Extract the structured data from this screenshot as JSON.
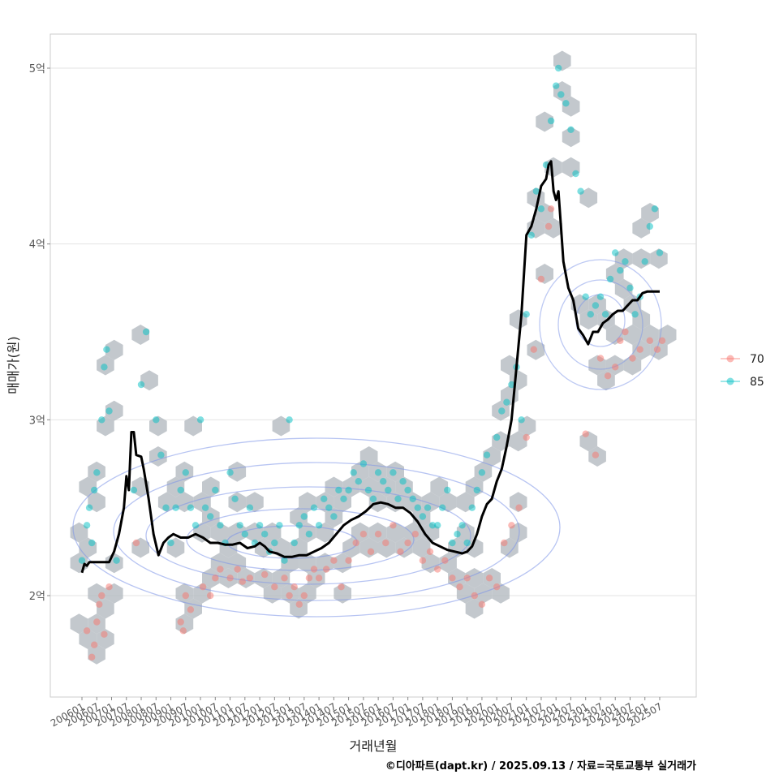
{
  "chart_data": {
    "type": "scatter",
    "xlabel": "거래년월",
    "ylabel": "매매가(원)",
    "caption": "©디아파트(dapt.kr) / 2025.09.13 / 자료=국토교통부 실거래가",
    "ylim": [
      1.45,
      5.2
    ],
    "y_ticks": [
      {
        "value": 2,
        "label": "2억"
      },
      {
        "value": 3,
        "label": "3억"
      },
      {
        "value": 4,
        "label": "4억"
      },
      {
        "value": 5,
        "label": "5억"
      }
    ],
    "x_ticks": [
      "200601",
      "200607",
      "200701",
      "200707",
      "200801",
      "200807",
      "200901",
      "200907",
      "201001",
      "201007",
      "201101",
      "201107",
      "201201",
      "201207",
      "201301",
      "201307",
      "201401",
      "201407",
      "201501",
      "201507",
      "201601",
      "201607",
      "201701",
      "201707",
      "201801",
      "201807",
      "201901",
      "201907",
      "202001",
      "202007",
      "202101",
      "202107",
      "202201",
      "202207",
      "202301",
      "202307",
      "202401",
      "202407",
      "202501",
      "202507"
    ],
    "grid": true,
    "legend_position": "right",
    "colors": {
      "70": "#F8766D",
      "85": "#00BFC4",
      "trend": "#000000",
      "hex": "#B4BAC0",
      "contour": "#7B93E8"
    },
    "series": [
      {
        "name": "70",
        "points": [
          [
            "200603",
            1.8
          ],
          [
            "200605",
            1.65
          ],
          [
            "200606",
            1.72
          ],
          [
            "200607",
            1.85
          ],
          [
            "200608",
            1.95
          ],
          [
            "200609",
            2.0
          ],
          [
            "200610",
            1.78
          ],
          [
            "200612",
            2.05
          ],
          [
            "200711",
            2.3
          ],
          [
            "200905",
            1.85
          ],
          [
            "200906",
            1.8
          ],
          [
            "200907",
            2.0
          ],
          [
            "200909",
            1.92
          ],
          [
            "201002",
            2.05
          ],
          [
            "201005",
            2.0
          ],
          [
            "201007",
            2.1
          ],
          [
            "201009",
            2.15
          ],
          [
            "201101",
            2.1
          ],
          [
            "201104",
            2.15
          ],
          [
            "201106",
            2.08
          ],
          [
            "201109",
            2.1
          ],
          [
            "201203",
            2.12
          ],
          [
            "201207",
            2.05
          ],
          [
            "201211",
            2.1
          ],
          [
            "201301",
            2.0
          ],
          [
            "201303",
            2.05
          ],
          [
            "201305",
            1.95
          ],
          [
            "201307",
            2.0
          ],
          [
            "201309",
            2.1
          ],
          [
            "201311",
            2.15
          ],
          [
            "201401",
            2.1
          ],
          [
            "201404",
            2.15
          ],
          [
            "201407",
            2.2
          ],
          [
            "201410",
            2.05
          ],
          [
            "201501",
            2.2
          ],
          [
            "201504",
            2.3
          ],
          [
            "201507",
            2.35
          ],
          [
            "201510",
            2.25
          ],
          [
            "201601",
            2.35
          ],
          [
            "201604",
            2.3
          ],
          [
            "201607",
            2.4
          ],
          [
            "201610",
            2.25
          ],
          [
            "201701",
            2.3
          ],
          [
            "201704",
            2.35
          ],
          [
            "201707",
            2.2
          ],
          [
            "201710",
            2.25
          ],
          [
            "201801",
            2.15
          ],
          [
            "201804",
            2.2
          ],
          [
            "201807",
            2.1
          ],
          [
            "201810",
            2.05
          ],
          [
            "201901",
            2.1
          ],
          [
            "201904",
            2.0
          ],
          [
            "201907",
            1.95
          ],
          [
            "201910",
            2.1
          ],
          [
            "202001",
            2.05
          ],
          [
            "202004",
            2.3
          ],
          [
            "202007",
            2.4
          ],
          [
            "202010",
            2.5
          ],
          [
            "202101",
            2.9
          ],
          [
            "202104",
            3.4
          ],
          [
            "202107",
            3.8
          ],
          [
            "202110",
            4.1
          ],
          [
            "202111",
            4.2
          ],
          [
            "202301",
            2.92
          ],
          [
            "202305",
            2.8
          ],
          [
            "202307",
            3.35
          ],
          [
            "202310",
            3.25
          ],
          [
            "202401",
            3.3
          ],
          [
            "202403",
            3.45
          ],
          [
            "202405",
            3.5
          ],
          [
            "202408",
            3.35
          ],
          [
            "202411",
            3.4
          ],
          [
            "202503",
            3.45
          ],
          [
            "202506",
            3.4
          ],
          [
            "202508",
            3.45
          ]
        ]
      },
      {
        "name": "85",
        "points": [
          [
            "200601",
            2.2
          ],
          [
            "200603",
            2.4
          ],
          [
            "200604",
            2.5
          ],
          [
            "200605",
            2.3
          ],
          [
            "200606",
            2.6
          ],
          [
            "200607",
            2.7
          ],
          [
            "200609",
            3.0
          ],
          [
            "200610",
            3.3
          ],
          [
            "200611",
            3.4
          ],
          [
            "200612",
            3.05
          ],
          [
            "200703",
            2.2
          ],
          [
            "200710",
            2.6
          ],
          [
            "200801",
            3.2
          ],
          [
            "200803",
            3.5
          ],
          [
            "200807",
            3.0
          ],
          [
            "200809",
            2.8
          ],
          [
            "200811",
            2.5
          ],
          [
            "200901",
            2.3
          ],
          [
            "200903",
            2.5
          ],
          [
            "200905",
            2.6
          ],
          [
            "200907",
            2.7
          ],
          [
            "200909",
            2.5
          ],
          [
            "200911",
            2.4
          ],
          [
            "201001",
            3.0
          ],
          [
            "201003",
            2.5
          ],
          [
            "201005",
            2.45
          ],
          [
            "201007",
            2.6
          ],
          [
            "201009",
            2.4
          ],
          [
            "201011",
            2.3
          ],
          [
            "201101",
            2.7
          ],
          [
            "201103",
            2.55
          ],
          [
            "201105",
            2.4
          ],
          [
            "201107",
            2.35
          ],
          [
            "201109",
            2.5
          ],
          [
            "201111",
            2.3
          ],
          [
            "201201",
            2.4
          ],
          [
            "201203",
            2.35
          ],
          [
            "201205",
            2.25
          ],
          [
            "201207",
            2.3
          ],
          [
            "201209",
            2.4
          ],
          [
            "201211",
            2.2
          ],
          [
            "201301",
            3.0
          ],
          [
            "201303",
            2.3
          ],
          [
            "201305",
            2.4
          ],
          [
            "201307",
            2.45
          ],
          [
            "201309",
            2.35
          ],
          [
            "201311",
            2.5
          ],
          [
            "201401",
            2.4
          ],
          [
            "201403",
            2.55
          ],
          [
            "201405",
            2.5
          ],
          [
            "201407",
            2.45
          ],
          [
            "201409",
            2.6
          ],
          [
            "201411",
            2.55
          ],
          [
            "201501",
            2.6
          ],
          [
            "201503",
            2.7
          ],
          [
            "201505",
            2.65
          ],
          [
            "201507",
            2.75
          ],
          [
            "201509",
            2.6
          ],
          [
            "201511",
            2.55
          ],
          [
            "201601",
            2.7
          ],
          [
            "201603",
            2.65
          ],
          [
            "201605",
            2.6
          ],
          [
            "201607",
            2.7
          ],
          [
            "201609",
            2.55
          ],
          [
            "201611",
            2.65
          ],
          [
            "201701",
            2.6
          ],
          [
            "201703",
            2.55
          ],
          [
            "201705",
            2.5
          ],
          [
            "201707",
            2.45
          ],
          [
            "201709",
            2.5
          ],
          [
            "201711",
            2.4
          ],
          [
            "201801",
            2.4
          ],
          [
            "201803",
            2.5
          ],
          [
            "201805",
            2.6
          ],
          [
            "201807",
            2.3
          ],
          [
            "201809",
            2.35
          ],
          [
            "201811",
            2.4
          ],
          [
            "201901",
            2.3
          ],
          [
            "201903",
            2.5
          ],
          [
            "201905",
            2.6
          ],
          [
            "201907",
            2.7
          ],
          [
            "201909",
            2.8
          ],
          [
            "202001",
            2.9
          ],
          [
            "202003",
            3.05
          ],
          [
            "202005",
            3.1
          ],
          [
            "202007",
            3.2
          ],
          [
            "202009",
            3.3
          ],
          [
            "202011",
            3.0
          ],
          [
            "202101",
            3.6
          ],
          [
            "202103",
            4.05
          ],
          [
            "202105",
            4.3
          ],
          [
            "202107",
            4.2
          ],
          [
            "202109",
            4.45
          ],
          [
            "202111",
            4.7
          ],
          [
            "202201",
            4.9
          ],
          [
            "202202",
            5.0
          ],
          [
            "202203",
            4.85
          ],
          [
            "202205",
            4.8
          ],
          [
            "202207",
            4.65
          ],
          [
            "202209",
            4.4
          ],
          [
            "202211",
            4.3
          ],
          [
            "202301",
            3.7
          ],
          [
            "202303",
            3.6
          ],
          [
            "202305",
            3.65
          ],
          [
            "202307",
            3.7
          ],
          [
            "202309",
            3.6
          ],
          [
            "202311",
            3.8
          ],
          [
            "202401",
            3.95
          ],
          [
            "202403",
            3.85
          ],
          [
            "202405",
            3.9
          ],
          [
            "202407",
            3.75
          ],
          [
            "202409",
            3.6
          ],
          [
            "202411",
            3.7
          ],
          [
            "202501",
            3.9
          ],
          [
            "202503",
            4.1
          ],
          [
            "202505",
            4.2
          ],
          [
            "202507",
            3.95
          ]
        ]
      }
    ],
    "trend": [
      [
        "200601",
        2.13
      ],
      [
        "200602",
        2.18
      ],
      [
        "200603",
        2.17
      ],
      [
        "200604",
        2.19
      ],
      [
        "200607",
        2.19
      ],
      [
        "200610",
        2.19
      ],
      [
        "200612",
        2.19
      ],
      [
        "200702",
        2.25
      ],
      [
        "200704",
        2.35
      ],
      [
        "200706",
        2.5
      ],
      [
        "200707",
        2.68
      ],
      [
        "200708",
        2.6
      ],
      [
        "200709",
        2.93
      ],
      [
        "200710",
        2.93
      ],
      [
        "200711",
        2.8
      ],
      [
        "200801",
        2.79
      ],
      [
        "200802",
        2.72
      ],
      [
        "200804",
        2.55
      ],
      [
        "200806",
        2.35
      ],
      [
        "200808",
        2.23
      ],
      [
        "200810",
        2.3
      ],
      [
        "200812",
        2.33
      ],
      [
        "200902",
        2.35
      ],
      [
        "200905",
        2.33
      ],
      [
        "200908",
        2.33
      ],
      [
        "200911",
        2.35
      ],
      [
        "201002",
        2.33
      ],
      [
        "201005",
        2.3
      ],
      [
        "201008",
        2.3
      ],
      [
        "201011",
        2.29
      ],
      [
        "201102",
        2.29
      ],
      [
        "201105",
        2.3
      ],
      [
        "201108",
        2.27
      ],
      [
        "201111",
        2.28
      ],
      [
        "201201",
        2.3
      ],
      [
        "201203",
        2.28
      ],
      [
        "201205",
        2.25
      ],
      [
        "201208",
        2.24
      ],
      [
        "201211",
        2.22
      ],
      [
        "201302",
        2.22
      ],
      [
        "201305",
        2.23
      ],
      [
        "201308",
        2.23
      ],
      [
        "201311",
        2.25
      ],
      [
        "201402",
        2.27
      ],
      [
        "201405",
        2.3
      ],
      [
        "201408",
        2.35
      ],
      [
        "201411",
        2.4
      ],
      [
        "201502",
        2.43
      ],
      [
        "201505",
        2.45
      ],
      [
        "201508",
        2.48
      ],
      [
        "201511",
        2.52
      ],
      [
        "201602",
        2.53
      ],
      [
        "201605",
        2.52
      ],
      [
        "201608",
        2.5
      ],
      [
        "201611",
        2.5
      ],
      [
        "201702",
        2.47
      ],
      [
        "201705",
        2.42
      ],
      [
        "201708",
        2.35
      ],
      [
        "201711",
        2.3
      ],
      [
        "201802",
        2.28
      ],
      [
        "201805",
        2.26
      ],
      [
        "201808",
        2.25
      ],
      [
        "201811",
        2.24
      ],
      [
        "201901",
        2.25
      ],
      [
        "201903",
        2.28
      ],
      [
        "201905",
        2.35
      ],
      [
        "201907",
        2.45
      ],
      [
        "201909",
        2.52
      ],
      [
        "201911",
        2.55
      ],
      [
        "202001",
        2.65
      ],
      [
        "202003",
        2.72
      ],
      [
        "202005",
        2.85
      ],
      [
        "202007",
        3.0
      ],
      [
        "202009",
        3.3
      ],
      [
        "202011",
        3.6
      ],
      [
        "202101",
        4.05
      ],
      [
        "202103",
        4.1
      ],
      [
        "202105",
        4.2
      ],
      [
        "202107",
        4.33
      ],
      [
        "202109",
        4.37
      ],
      [
        "202110",
        4.45
      ],
      [
        "202111",
        4.47
      ],
      [
        "202112",
        4.3
      ],
      [
        "202201",
        4.25
      ],
      [
        "202202",
        4.3
      ],
      [
        "202203",
        4.1
      ],
      [
        "202204",
        3.9
      ],
      [
        "202206",
        3.75
      ],
      [
        "202208",
        3.68
      ],
      [
        "202210",
        3.52
      ],
      [
        "202212",
        3.48
      ],
      [
        "202302",
        3.43
      ],
      [
        "202304",
        3.5
      ],
      [
        "202306",
        3.5
      ],
      [
        "202308",
        3.55
      ],
      [
        "202310",
        3.57
      ],
      [
        "202312",
        3.6
      ],
      [
        "202402",
        3.62
      ],
      [
        "202404",
        3.62
      ],
      [
        "202406",
        3.65
      ],
      [
        "202408",
        3.68
      ],
      [
        "202410",
        3.68
      ],
      [
        "202412",
        3.72
      ],
      [
        "202502",
        3.73
      ],
      [
        "202504",
        3.73
      ],
      [
        "202507",
        3.73
      ]
    ]
  }
}
